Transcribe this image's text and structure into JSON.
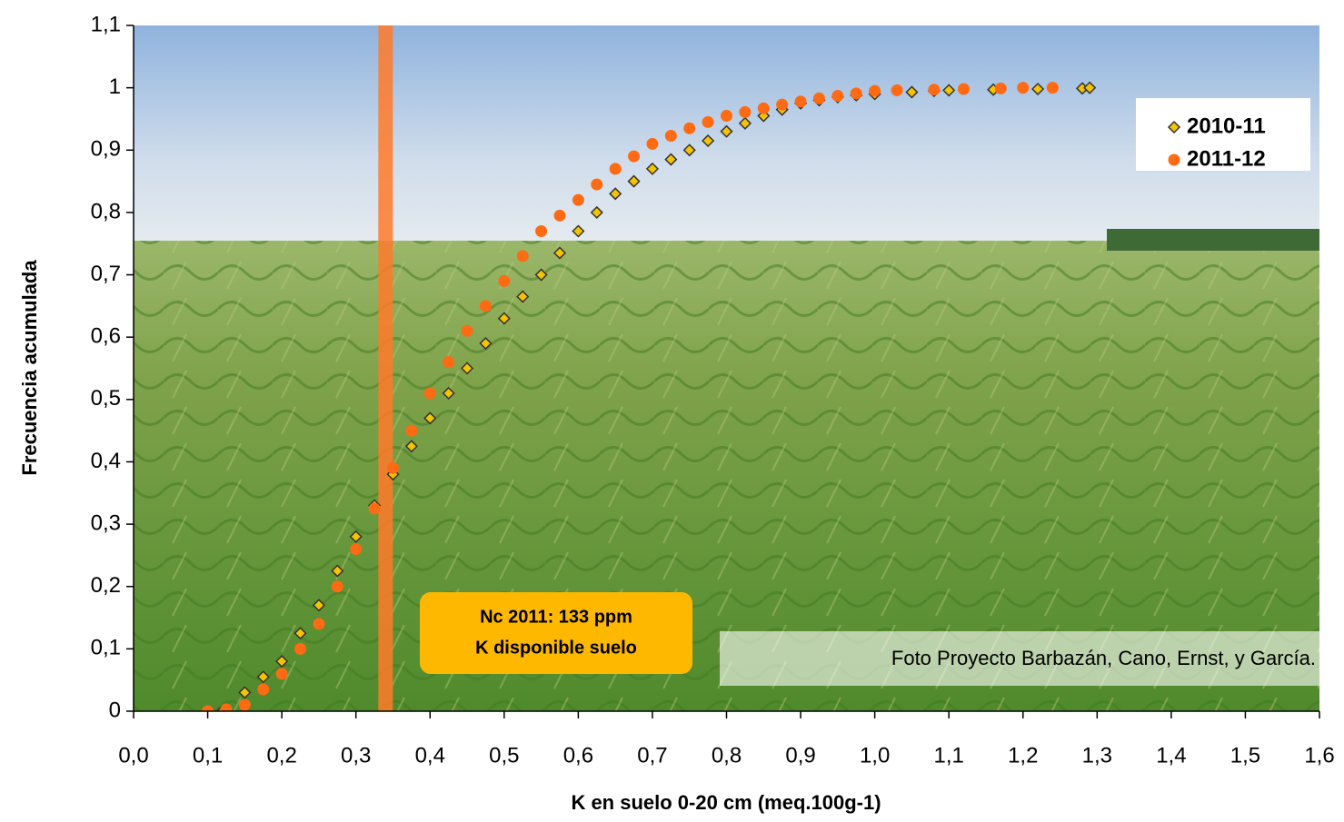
{
  "chart_data": {
    "type": "scatter",
    "xlabel": "K en suelo 0-20 cm (meq.100g-1)",
    "ylabel": "Frecuencia acumulada",
    "xlim": [
      0,
      1.6
    ],
    "ylim": [
      0,
      1.1
    ],
    "xticks": [
      {
        "value": 0,
        "label": "0,0"
      },
      {
        "value": 0.1,
        "label": "0,1"
      },
      {
        "value": 0.2,
        "label": "0,2"
      },
      {
        "value": 0.3,
        "label": "0,3"
      },
      {
        "value": 0.4,
        "label": "0,4"
      },
      {
        "value": 0.5,
        "label": "0,5"
      },
      {
        "value": 0.6,
        "label": "0,6"
      },
      {
        "value": 0.7,
        "label": "0,7"
      },
      {
        "value": 0.8,
        "label": "0,8"
      },
      {
        "value": 0.9,
        "label": "0,9"
      },
      {
        "value": 1.0,
        "label": "1,0"
      },
      {
        "value": 1.1,
        "label": "1,1"
      },
      {
        "value": 1.2,
        "label": "1,2"
      },
      {
        "value": 1.3,
        "label": "1,3"
      },
      {
        "value": 1.4,
        "label": "1,4"
      },
      {
        "value": 1.5,
        "label": "1,5"
      },
      {
        "value": 1.6,
        "label": "1,6"
      }
    ],
    "yticks": [
      0,
      {
        "value": 0.1,
        "label": "0,1"
      },
      {
        "value": 0.2,
        "label": "0,2"
      },
      {
        "value": 0.3,
        "label": "0,3"
      },
      {
        "value": 0.4,
        "label": "0,4"
      },
      {
        "value": 0.5,
        "label": "0,5"
      },
      {
        "value": 0.6,
        "label": "0,6"
      },
      {
        "value": 0.7,
        "label": "0,7"
      },
      {
        "value": 0.8,
        "label": "0,8"
      },
      {
        "value": 0.9,
        "label": "0,9"
      },
      1,
      {
        "value": 1.1,
        "label": "1,1"
      }
    ],
    "legend": "upper right",
    "vline": 0.34,
    "vline_color": "#ff7a2a",
    "annotation_lines": [
      "Nc 2011: 133 ppm",
      "K disponible suelo"
    ],
    "credit": "Foto Proyecto Barbazán, Cano, Ernst, y García.",
    "series": [
      {
        "name": "2010-11",
        "color": "#f5c400",
        "marker": "diamond",
        "x": [
          0.12,
          0.15,
          0.175,
          0.2,
          0.225,
          0.25,
          0.275,
          0.3,
          0.325,
          0.35,
          0.375,
          0.4,
          0.425,
          0.45,
          0.475,
          0.5,
          0.525,
          0.55,
          0.575,
          0.6,
          0.625,
          0.65,
          0.675,
          0.7,
          0.725,
          0.75,
          0.775,
          0.8,
          0.825,
          0.85,
          0.875,
          0.9,
          0.925,
          0.95,
          0.975,
          1.0,
          1.05,
          1.08,
          1.1,
          1.16,
          1.22,
          1.28,
          1.29
        ],
        "values": [
          0.0,
          0.03,
          0.055,
          0.08,
          0.125,
          0.17,
          0.225,
          0.28,
          0.33,
          0.38,
          0.425,
          0.47,
          0.51,
          0.55,
          0.59,
          0.63,
          0.665,
          0.7,
          0.735,
          0.77,
          0.8,
          0.83,
          0.85,
          0.87,
          0.885,
          0.9,
          0.915,
          0.93,
          0.943,
          0.955,
          0.965,
          0.975,
          0.98,
          0.985,
          0.988,
          0.99,
          0.993,
          0.995,
          0.996,
          0.997,
          0.998,
          0.999,
          1.0
        ]
      },
      {
        "name": "2011-12",
        "color": "#ff6a13",
        "marker": "circle",
        "x": [
          0.1,
          0.125,
          0.15,
          0.175,
          0.2,
          0.225,
          0.25,
          0.275,
          0.3,
          0.325,
          0.35,
          0.375,
          0.4,
          0.425,
          0.45,
          0.475,
          0.5,
          0.525,
          0.55,
          0.575,
          0.6,
          0.625,
          0.65,
          0.675,
          0.7,
          0.725,
          0.75,
          0.775,
          0.8,
          0.825,
          0.85,
          0.875,
          0.9,
          0.925,
          0.95,
          0.975,
          1.0,
          1.03,
          1.08,
          1.12,
          1.17,
          1.2,
          1.24
        ],
        "values": [
          0.0,
          0.003,
          0.01,
          0.035,
          0.06,
          0.1,
          0.14,
          0.2,
          0.26,
          0.325,
          0.39,
          0.45,
          0.51,
          0.56,
          0.61,
          0.65,
          0.69,
          0.73,
          0.77,
          0.795,
          0.82,
          0.845,
          0.87,
          0.89,
          0.91,
          0.923,
          0.935,
          0.945,
          0.955,
          0.961,
          0.967,
          0.973,
          0.978,
          0.983,
          0.987,
          0.991,
          0.995,
          0.996,
          0.997,
          0.998,
          0.999,
          1.0,
          1.0
        ]
      }
    ]
  }
}
